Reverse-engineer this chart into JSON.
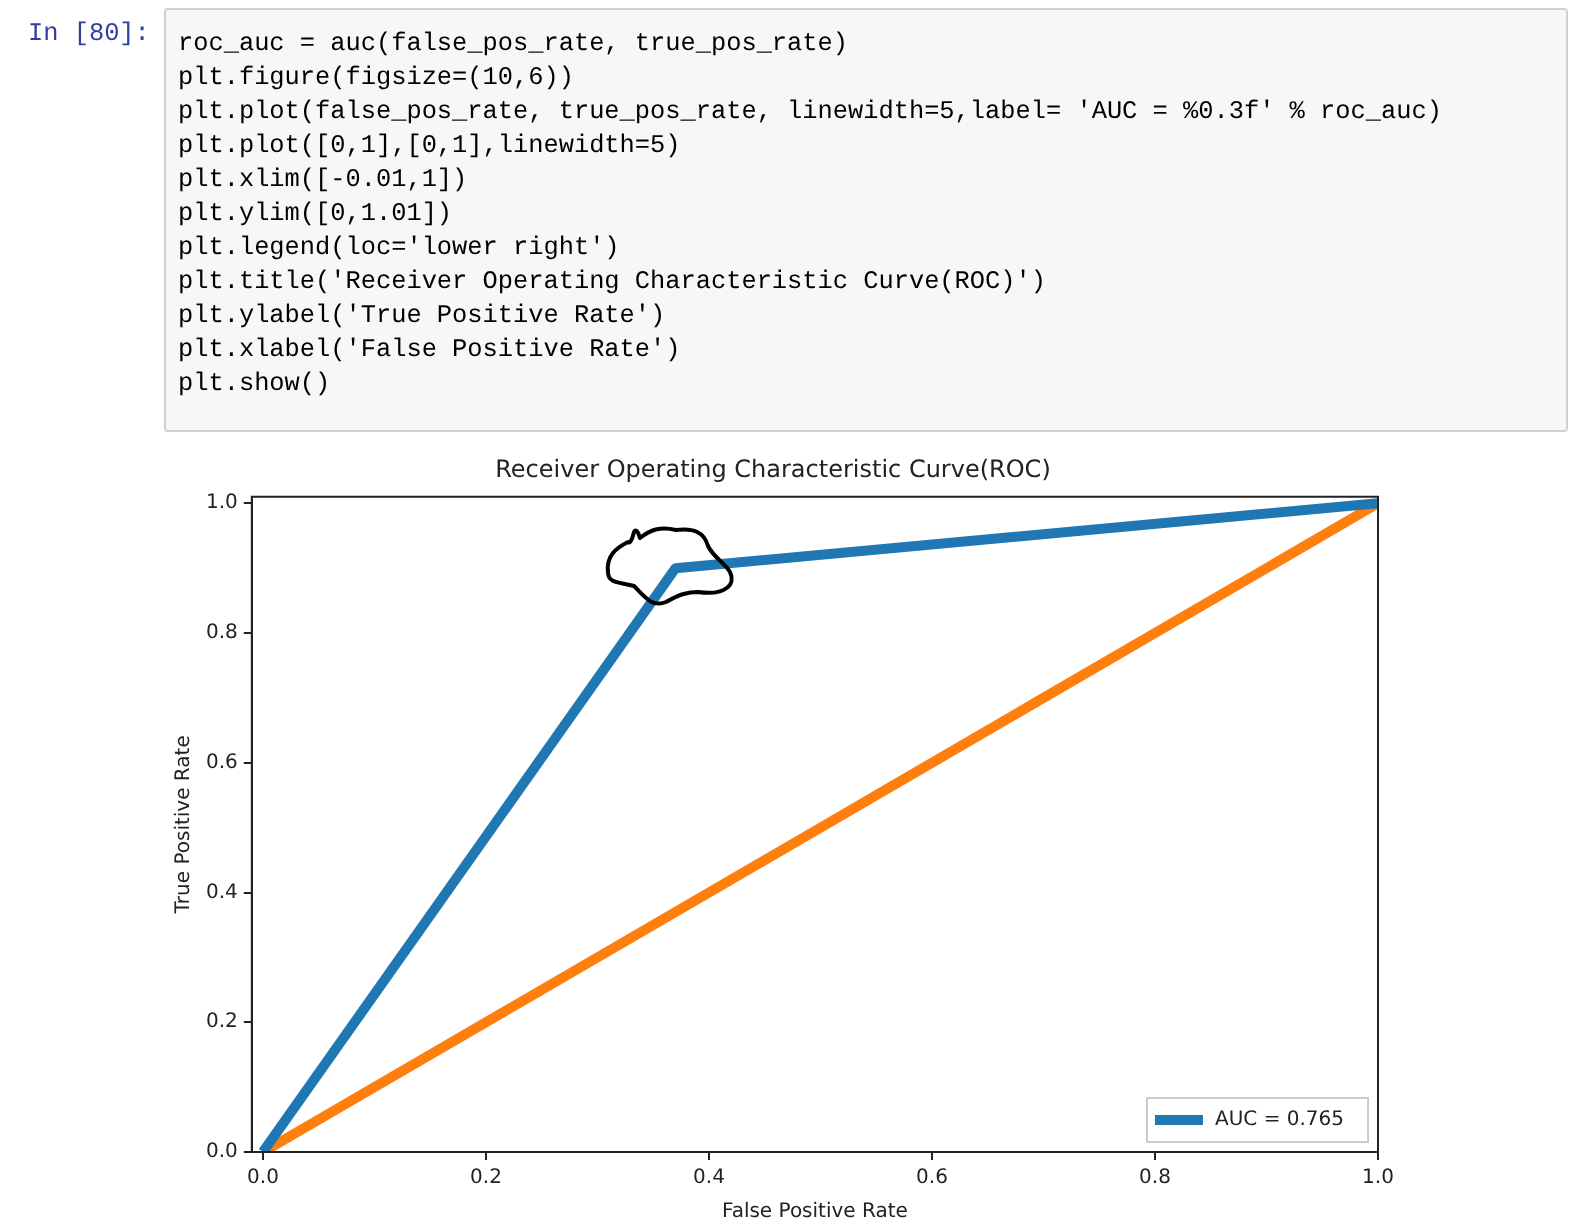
{
  "chart_data": {
    "type": "line",
    "title": "Receiver Operating Characteristic Curve(ROC)",
    "xlabel": "False Positive Rate",
    "ylabel": "True Positive Rate",
    "series": [
      {
        "name": "AUC = 0.765",
        "color": "#1f77b4",
        "x": [
          0,
          0.37,
          1
        ],
        "values": [
          0,
          0.9,
          1
        ]
      },
      {
        "color": "#ff7f0e",
        "x": [
          0,
          1
        ],
        "values": [
          0,
          1
        ]
      }
    ],
    "xlim": [
      -0.01,
      1
    ],
    "ylim": [
      0,
      1.01
    ],
    "xticks": [
      {
        "value": 0,
        "label": "0.0"
      },
      0.2,
      0.4,
      0.6,
      0.8,
      {
        "value": 1,
        "label": "1.0"
      }
    ],
    "yticks": [
      {
        "value": 0,
        "label": "0.0"
      },
      0.2,
      0.4,
      0.6,
      0.8,
      {
        "value": 1,
        "label": "1.0"
      }
    ],
    "grid": false,
    "legend": "bottom right",
    "marker": "none",
    "line_style": "solid",
    "annotations": [
      "In [80]:",
      "roc_auc = auc(false_pos_rate, true_pos_rate)",
      "plt.figure(figsize=(10,6))",
      "plt.plot(false_pos_rate, true_pos_rate, linewidth=5,label= 'AUC = %0.3f' % roc_auc)",
      "plt.plot([0,1],[0,1],linewidth=5)",
      "plt.xlim([-0.01,1])",
      "plt.ylim([0,1.01])",
      "plt.legend(loc='lower right')",
      "plt.title('Receiver Operating Characteristic Curve(ROC)')",
      "plt.ylabel('True Positive Rate')",
      "plt.xlabel('False Positive Rate')",
      "plt.show()"
    ]
  }
}
